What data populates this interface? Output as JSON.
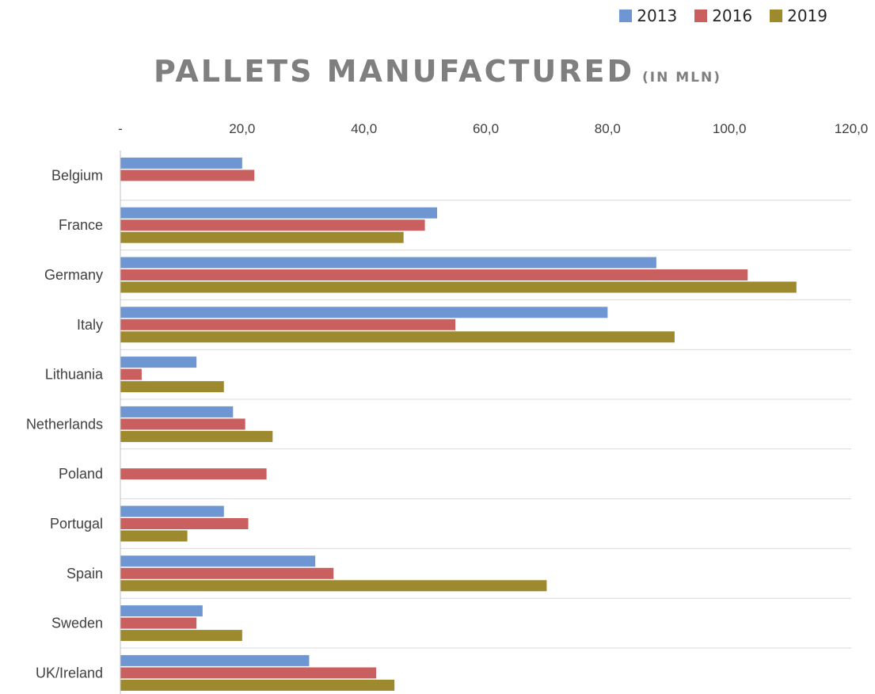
{
  "chart_data": {
    "type": "bar",
    "orientation": "horizontal",
    "title": "PALLETS MANUFACTURED",
    "subtitle": "(IN MLN)",
    "categories": [
      "Belgium",
      "France",
      "Germany",
      "Italy",
      "Lithuania",
      "Netherlands",
      "Poland",
      "Portugal",
      "Spain",
      "Sweden",
      "UK/Ireland"
    ],
    "x_ticks": [
      "-",
      "20,0",
      "40,0",
      "60,0",
      "80,0",
      "100,0",
      "120,0"
    ],
    "xlim": [
      0,
      120
    ],
    "grid": true,
    "legend_position": "top-right",
    "series": [
      {
        "name": "2013",
        "color": "#6e96d2",
        "values": [
          20,
          52,
          88,
          80,
          12.5,
          18.5,
          0,
          17,
          32,
          13.5,
          31
        ]
      },
      {
        "name": "2016",
        "color": "#c95f5f",
        "values": [
          22,
          50,
          103,
          55,
          3.5,
          20.5,
          24,
          21,
          35,
          12.5,
          42
        ]
      },
      {
        "name": "2019",
        "color": "#9d8a2e",
        "values": [
          0,
          46.5,
          111,
          91,
          17,
          25,
          0,
          11,
          70,
          20,
          45
        ]
      }
    ]
  }
}
